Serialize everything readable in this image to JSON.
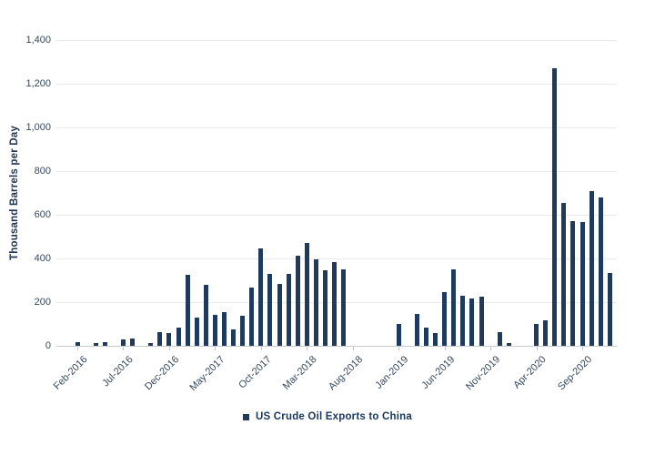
{
  "colors": {
    "bar": "#1e3a5c",
    "grid": "#e7e9eb",
    "zero_line": "#c9ccd0",
    "tick": "#c2c6cb",
    "axis_text": "#36485e",
    "navy_text": "#17375e",
    "background": "#ffffff"
  },
  "chart_data": {
    "type": "bar",
    "title": "",
    "xlabel": "",
    "ylabel": "Thousand Barrels per Day",
    "ylim": [
      0,
      1400
    ],
    "ytick_step": 200,
    "ytick_labels": [
      "0",
      "200",
      "400",
      "600",
      "800",
      "1,000",
      "1,200",
      "1,400"
    ],
    "grid": true,
    "legend_position": "bottom",
    "xtick_every": 5,
    "categories": [
      "Feb-2016",
      "Mar-2016",
      "Apr-2016",
      "May-2016",
      "Jun-2016",
      "Jul-2016",
      "Aug-2016",
      "Sep-2016",
      "Oct-2016",
      "Nov-2016",
      "Dec-2016",
      "Jan-2017",
      "Feb-2017",
      "Mar-2017",
      "Apr-2017",
      "May-2017",
      "Jun-2017",
      "Jul-2017",
      "Aug-2017",
      "Sep-2017",
      "Oct-2017",
      "Nov-2017",
      "Dec-2017",
      "Jan-2018",
      "Feb-2018",
      "Mar-2018",
      "Apr-2018",
      "May-2018",
      "Jun-2018",
      "Jul-2018",
      "Aug-2018",
      "Sep-2018",
      "Oct-2018",
      "Nov-2018",
      "Dec-2018",
      "Jan-2019",
      "Feb-2019",
      "Mar-2019",
      "Apr-2019",
      "May-2019",
      "Jun-2019",
      "Jul-2019",
      "Aug-2019",
      "Sep-2019",
      "Oct-2019",
      "Nov-2019",
      "Dec-2019",
      "Jan-2020",
      "Feb-2020",
      "Mar-2020",
      "Apr-2020",
      "May-2020",
      "Jun-2020",
      "Jul-2020",
      "Aug-2020",
      "Sep-2020",
      "Oct-2020",
      "Nov-2020",
      "Dec-2020"
    ],
    "series": [
      {
        "name": "US Crude Oil Exports to China",
        "color": "#1e3a5c",
        "values": [
          18,
          0,
          12,
          15,
          0,
          28,
          33,
          0,
          12,
          62,
          58,
          83,
          324,
          128,
          278,
          142,
          155,
          74,
          139,
          266,
          448,
          328,
          283,
          330,
          414,
          469,
          396,
          347,
          382,
          352,
          0,
          0,
          0,
          0,
          0,
          100,
          0,
          146,
          83,
          58,
          247,
          352,
          229,
          218,
          225,
          0,
          63,
          14,
          0,
          0,
          102,
          116,
          1270,
          655,
          570,
          565,
          710,
          680,
          335
        ]
      }
    ]
  }
}
